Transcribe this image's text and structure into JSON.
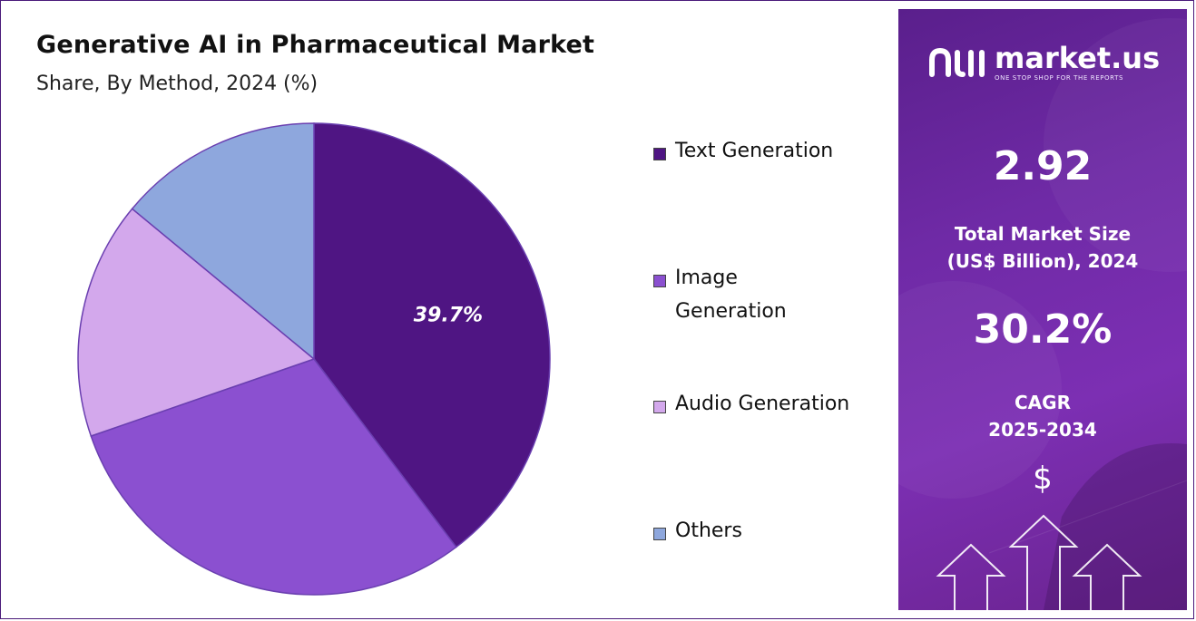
{
  "title": "Generative AI in Pharmaceutical Market",
  "subtitle": "Share, By Method, 2024 (%)",
  "chart_data": {
    "type": "pie",
    "title": "Generative AI in Pharmaceutical Market",
    "subtitle": "Share, By Method, 2024 (%)",
    "categories": [
      "Text Generation",
      "Image Generation",
      "Audio Generation",
      "Others"
    ],
    "values": [
      39.7,
      30.0,
      16.3,
      14.0
    ],
    "colors": [
      "#4f1583",
      "#8b50d0",
      "#d3a8ec",
      "#8ea7dd"
    ],
    "data_labels": [
      "39.7%",
      "",
      "",
      ""
    ],
    "legend_position": "right",
    "start_angle": "top, clockwise"
  },
  "legend": {
    "items": [
      {
        "label": "Text Generation",
        "color": "#4f1583"
      },
      {
        "label": "Image Generation",
        "color": "#8b50d0"
      },
      {
        "label": "Audio Generation",
        "color": "#d3a8ec"
      },
      {
        "label": "Others",
        "color": "#8ea7dd"
      }
    ]
  },
  "brand": {
    "name": "market.us",
    "tagline": "ONE STOP SHOP FOR THE REPORTS",
    "logo_icon": "market-us-logo-icon"
  },
  "stats": {
    "market_size_value": "2.92",
    "market_size_label_1": "Total Market Size",
    "market_size_label_2": "(US$ Billion), 2024",
    "cagr_value": "30.2%",
    "cagr_label_1": "CAGR",
    "cagr_label_2": "2025-2034",
    "currency_symbol": "$"
  },
  "colors": {
    "panel_accent": "#7c2fb3",
    "border": "#4a1a7a"
  }
}
